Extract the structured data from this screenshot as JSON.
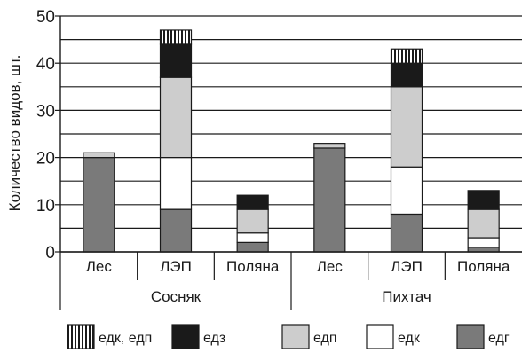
{
  "chart_data": {
    "type": "bar",
    "stacked": true,
    "ylabel": "Количество видов, шт.",
    "ylim": [
      0,
      50
    ],
    "yticks": [
      0,
      10,
      20,
      30,
      40,
      50
    ],
    "grid": true,
    "legend_placement": "bottom",
    "groups": [
      {
        "label": "Сосняк",
        "categories": [
          "Лес",
          "ЛЭП",
          "Поляна"
        ]
      },
      {
        "label": "Пихтач",
        "categories": [
          "Лес",
          "ЛЭП",
          "Поляна"
        ]
      }
    ],
    "x": [
      "Лес",
      "ЛЭП",
      "Поляна",
      "Лес",
      "ЛЭП",
      "Поляна"
    ],
    "series": [
      {
        "name": "едг",
        "key": "edg",
        "color": "#7a7a7a",
        "values": [
          20,
          9,
          2,
          22,
          8,
          1
        ]
      },
      {
        "name": "едк",
        "key": "edk",
        "color": "#ffffff",
        "values": [
          0,
          11,
          2,
          0,
          10,
          2
        ]
      },
      {
        "name": "едп",
        "key": "edp",
        "color": "#cdcdcd",
        "values": [
          1,
          17,
          5,
          1,
          17,
          6
        ]
      },
      {
        "name": "едз",
        "key": "edz",
        "color": "#1a1a1a",
        "values": [
          0,
          7,
          3,
          0,
          5,
          4
        ]
      },
      {
        "name": "едк, едп",
        "key": "edk-edp",
        "color": "hatch",
        "values": [
          0,
          3,
          0,
          0,
          3,
          0
        ]
      }
    ],
    "legend_order": [
      "edk-edp",
      "edz",
      "edp",
      "edk",
      "edg"
    ]
  }
}
